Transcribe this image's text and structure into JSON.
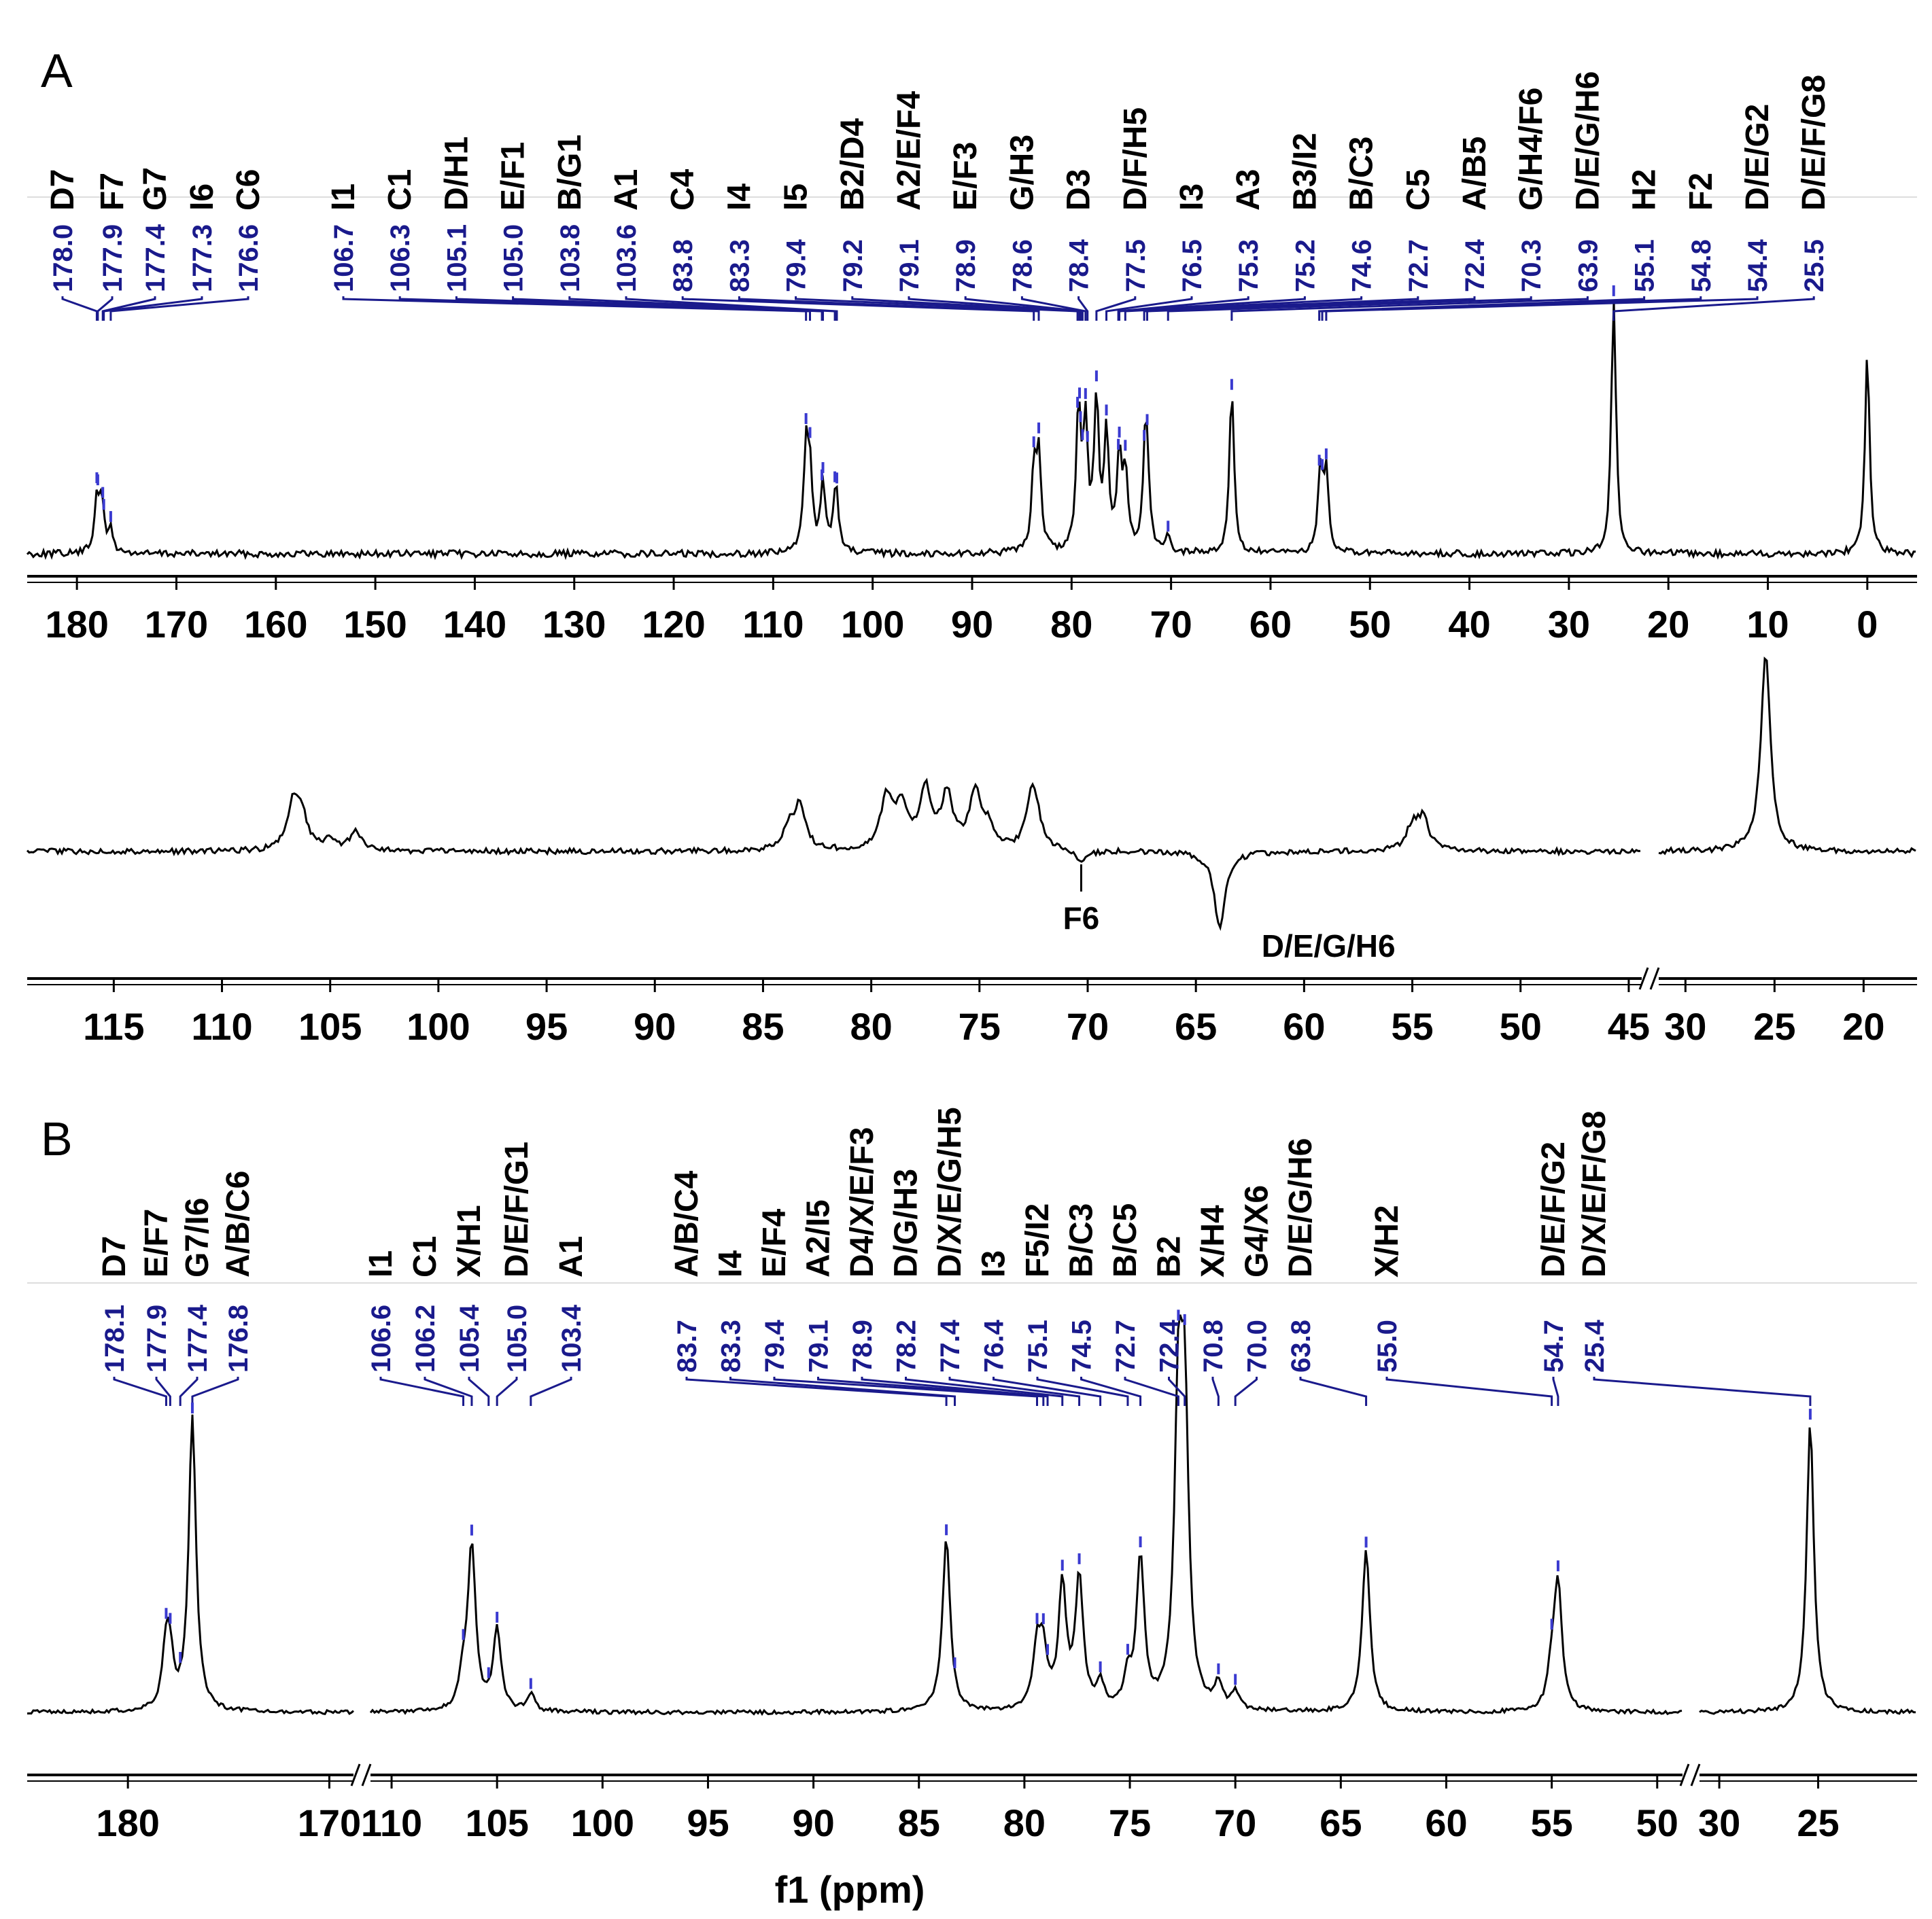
{
  "chart_data": [
    {
      "panel": "A",
      "type": "line",
      "xlabel": "",
      "xlim": [
        185,
        -5
      ],
      "x_reversed": true,
      "ticks": [
        180,
        170,
        160,
        150,
        140,
        130,
        120,
        110,
        100,
        90,
        80,
        70,
        60,
        50,
        40,
        30,
        20,
        10,
        0
      ],
      "peak_labels": [
        {
          "assign": "D7",
          "shift": 178.0
        },
        {
          "assign": "F7",
          "shift": 177.9
        },
        {
          "assign": "G7",
          "shift": 177.4
        },
        {
          "assign": "I6",
          "shift": 177.3
        },
        {
          "assign": "C6",
          "shift": 176.6
        },
        {
          "assign": "I1",
          "shift": 106.7
        },
        {
          "assign": "C1",
          "shift": 106.3
        },
        {
          "assign": "D/H1",
          "shift": 105.1
        },
        {
          "assign": "E/F1",
          "shift": 105.0
        },
        {
          "assign": "B/G1",
          "shift": 103.8
        },
        {
          "assign": "A1",
          "shift": 103.6
        },
        {
          "assign": "C4",
          "shift": 83.8
        },
        {
          "assign": "I4",
          "shift": 83.3
        },
        {
          "assign": "I5",
          "shift": 79.4
        },
        {
          "assign": "B2/D4",
          "shift": 79.2
        },
        {
          "assign": "A2/E/F4",
          "shift": 79.1
        },
        {
          "assign": "E/F3",
          "shift": 78.9
        },
        {
          "assign": "G/H3",
          "shift": 78.6
        },
        {
          "assign": "D3",
          "shift": 78.4
        },
        {
          "assign": "D/F/H5",
          "shift": 77.5
        },
        {
          "assign": "I3",
          "shift": 76.5
        },
        {
          "assign": "A3",
          "shift": 75.3
        },
        {
          "assign": "B3/I2",
          "shift": 75.2
        },
        {
          "assign": "B/C3",
          "shift": 74.6
        },
        {
          "assign": "C5",
          "shift": 72.7
        },
        {
          "assign": "A/B5",
          "shift": 72.4
        },
        {
          "assign": "G/H4/F6",
          "shift": 70.3
        },
        {
          "assign": "D/E/G/H6",
          "shift": 63.9
        },
        {
          "assign": "H2",
          "shift": 55.1
        },
        {
          "assign": "F2",
          "shift": 54.8
        },
        {
          "assign": "D/E/G2",
          "shift": 54.4
        },
        {
          "assign": "D/E/F/G8",
          "shift": 25.5
        }
      ],
      "peaks": [
        {
          "x": 178.0,
          "h": 0.22
        },
        {
          "x": 177.5,
          "h": 0.18
        },
        {
          "x": 176.6,
          "h": 0.09
        },
        {
          "x": 106.7,
          "h": 0.39
        },
        {
          "x": 106.3,
          "h": 0.3
        },
        {
          "x": 105.0,
          "h": 0.27
        },
        {
          "x": 103.7,
          "h": 0.28
        },
        {
          "x": 83.8,
          "h": 0.31
        },
        {
          "x": 83.3,
          "h": 0.38
        },
        {
          "x": 79.3,
          "h": 0.55
        },
        {
          "x": 78.6,
          "h": 0.47
        },
        {
          "x": 77.5,
          "h": 0.58
        },
        {
          "x": 76.5,
          "h": 0.45
        },
        {
          "x": 75.2,
          "h": 0.35
        },
        {
          "x": 74.6,
          "h": 0.3
        },
        {
          "x": 72.6,
          "h": 0.33
        },
        {
          "x": 72.4,
          "h": 0.26
        },
        {
          "x": 70.3,
          "h": 0.06
        },
        {
          "x": 63.9,
          "h": 0.63
        },
        {
          "x": 55.0,
          "h": 0.33
        },
        {
          "x": 54.4,
          "h": 0.3
        },
        {
          "x": 25.5,
          "h": 1.0
        },
        {
          "x": 0.0,
          "h": 0.78
        }
      ]
    },
    {
      "panel": "A (lower)",
      "type": "line",
      "xlabel": "",
      "segments": [
        {
          "xlim": [
            119,
            44.4
          ],
          "ticks": [
            115,
            110,
            105,
            100,
            95,
            90,
            85,
            80,
            75,
            70,
            65,
            60,
            55,
            50,
            45
          ]
        },
        {
          "xlim": [
            31.5,
            17
          ],
          "ticks": [
            30,
            25,
            20
          ]
        }
      ],
      "annotations": [
        {
          "text": "F6",
          "shift": 70.3
        },
        {
          "text": "D/E/G/H6",
          "shift": 63.9
        }
      ],
      "peaks": [
        {
          "x": 106.7,
          "h": 0.24
        },
        {
          "x": 106.3,
          "h": 0.15
        },
        {
          "x": 105.0,
          "h": 0.05
        },
        {
          "x": 103.8,
          "h": 0.1
        },
        {
          "x": 83.8,
          "h": 0.1
        },
        {
          "x": 83.3,
          "h": 0.22
        },
        {
          "x": 79.3,
          "h": 0.26
        },
        {
          "x": 78.6,
          "h": 0.22
        },
        {
          "x": 77.5,
          "h": 0.3
        },
        {
          "x": 76.5,
          "h": 0.27
        },
        {
          "x": 75.2,
          "h": 0.29
        },
        {
          "x": 74.6,
          "h": 0.1
        },
        {
          "x": 72.6,
          "h": 0.21
        },
        {
          "x": 72.4,
          "h": 0.14
        },
        {
          "x": 70.3,
          "h": -0.06
        },
        {
          "x": 63.9,
          "h": -0.38
        },
        {
          "x": 55.0,
          "h": 0.12
        },
        {
          "x": 54.5,
          "h": 0.16
        },
        {
          "x": 25.5,
          "h": 1.0
        }
      ]
    },
    {
      "panel": "B",
      "type": "line",
      "xlabel": "f1 (ppm)",
      "segments": [
        {
          "xlim": [
            185,
            168.8
          ],
          "ticks": [
            180,
            170
          ]
        },
        {
          "xlim": [
            111,
            48.8
          ],
          "ticks": [
            110,
            105,
            100,
            95,
            90,
            85,
            80,
            75,
            70,
            65,
            60,
            55,
            50
          ]
        },
        {
          "xlim": [
            31,
            20
          ],
          "ticks": [
            30,
            25
          ]
        }
      ],
      "peak_labels": [
        {
          "assign": "D7",
          "shift": 178.1
        },
        {
          "assign": "E/F7",
          "shift": 177.9
        },
        {
          "assign": "G7/I6",
          "shift": 177.4
        },
        {
          "assign": "A/B/C6",
          "shift": 176.8
        },
        {
          "assign": "I1",
          "shift": 106.6
        },
        {
          "assign": "C1",
          "shift": 106.2
        },
        {
          "assign": "X/H1",
          "shift": 105.4
        },
        {
          "assign": "D/E/F/G1",
          "shift": 105.0
        },
        {
          "assign": "A1",
          "shift": 103.4
        },
        {
          "assign": "A/B/C4",
          "shift": 83.7
        },
        {
          "assign": "I4",
          "shift": 83.3
        },
        {
          "assign": "E/F4",
          "shift": 79.4
        },
        {
          "assign": "A2/I5",
          "shift": 79.1
        },
        {
          "assign": "D4/X/E/F3",
          "shift": 78.9
        },
        {
          "assign": "D/G/H3",
          "shift": 78.2
        },
        {
          "assign": "D/X/E/G/H5",
          "shift": 77.4
        },
        {
          "assign": "I3",
          "shift": 76.4
        },
        {
          "assign": "F5/I2",
          "shift": 75.1
        },
        {
          "assign": "B/C3",
          "shift": 74.5
        },
        {
          "assign": "B/C5",
          "shift": 72.7
        },
        {
          "assign": "B2",
          "shift": 72.4
        },
        {
          "assign": "X/H4",
          "shift": 70.8
        },
        {
          "assign": "G4/X6",
          "shift": 70.0
        },
        {
          "assign": "D/E/G/H6",
          "shift": 63.8
        },
        {
          "assign": "X/H2",
          "shift": 55.0
        },
        {
          "assign": "D/E/F/G2",
          "shift": 54.7
        },
        {
          "assign": "D/X/E/F/G8",
          "shift": 25.4
        }
      ],
      "peaks": [
        {
          "x": 178.1,
          "h": 0.2
        },
        {
          "x": 177.9,
          "h": 0.14
        },
        {
          "x": 176.8,
          "h": 0.98
        },
        {
          "x": 106.6,
          "h": 0.1
        },
        {
          "x": 106.2,
          "h": 0.55
        },
        {
          "x": 105.0,
          "h": 0.27
        },
        {
          "x": 103.4,
          "h": 0.06
        },
        {
          "x": 83.7,
          "h": 0.58
        },
        {
          "x": 79.4,
          "h": 0.2
        },
        {
          "x": 79.1,
          "h": 0.18
        },
        {
          "x": 78.2,
          "h": 0.41
        },
        {
          "x": 77.4,
          "h": 0.44
        },
        {
          "x": 76.4,
          "h": 0.08
        },
        {
          "x": 75.1,
          "h": 0.1
        },
        {
          "x": 74.5,
          "h": 0.5
        },
        {
          "x": 72.7,
          "h": 0.96
        },
        {
          "x": 72.4,
          "h": 0.94
        },
        {
          "x": 70.8,
          "h": 0.08
        },
        {
          "x": 70.0,
          "h": 0.06
        },
        {
          "x": 63.8,
          "h": 0.54
        },
        {
          "x": 55.0,
          "h": 0.12
        },
        {
          "x": 54.7,
          "h": 0.42
        },
        {
          "x": 25.4,
          "h": 0.97
        }
      ]
    }
  ],
  "labels": {
    "panel_a": "A",
    "panel_b": "B",
    "f6": "F6",
    "dgh6": "D/E/G/H6",
    "xlabel": "f1 (ppm)"
  },
  "colors": {
    "spectrum": "#000000",
    "shift_label": "#1a1a8c",
    "peak_marker": "#3a3ad0"
  }
}
